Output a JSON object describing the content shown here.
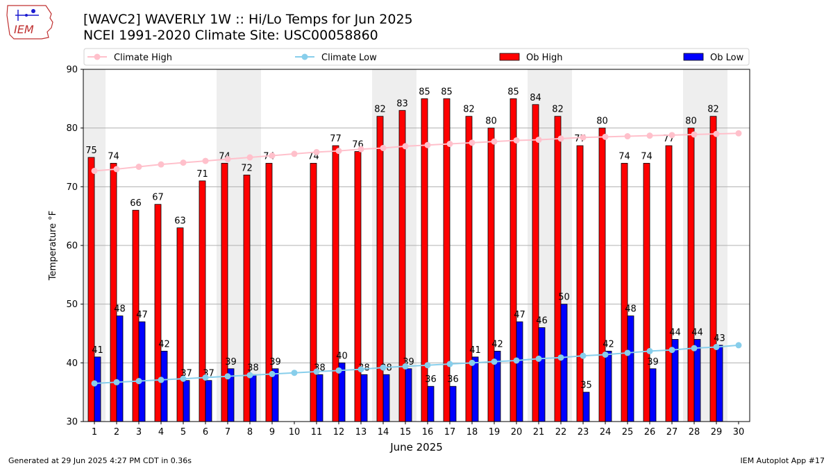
{
  "header": {
    "logo_text": "IEM",
    "title_line1": "[WAVC2] WAVERLY 1W :: Hi/Lo Temps for Jun 2025",
    "title_line2": "NCEI 1991-2020 Climate Site: USC00058860"
  },
  "footer": {
    "generated": "Generated at 29 Jun 2025 4:27 PM CDT in 0.36s",
    "app": "IEM Autoplot App #17"
  },
  "colors": {
    "climate_high": "#ffc0cb",
    "climate_low": "#87ceeb",
    "ob_high": "#ff0000",
    "ob_low": "#0000ff",
    "weekend_shade": "#eeeeee",
    "grid": "#b0b0b0"
  },
  "chart_data": {
    "type": "bar",
    "xlabel": "June 2025",
    "ylabel": "Temperature °F",
    "ylim": [
      30,
      90
    ],
    "yticks": [
      30,
      40,
      50,
      60,
      70,
      80,
      90
    ],
    "grid": "horizontal",
    "legend_placement": "top",
    "categories": [
      "1",
      "2",
      "3",
      "4",
      "5",
      "6",
      "7",
      "8",
      "9",
      "10",
      "11",
      "12",
      "13",
      "14",
      "15",
      "16",
      "17",
      "18",
      "19",
      "20",
      "21",
      "22",
      "23",
      "24",
      "25",
      "26",
      "27",
      "28",
      "29",
      "30"
    ],
    "shaded_days": [
      1,
      7,
      8,
      14,
      15,
      21,
      22,
      28,
      29
    ],
    "series": [
      {
        "name": "Ob High",
        "kind": "bar",
        "values": [
          75,
          74,
          66,
          67,
          63,
          71,
          74,
          72,
          74,
          null,
          74,
          77,
          76,
          82,
          83,
          85,
          85,
          82,
          80,
          85,
          84,
          82,
          77,
          80,
          74,
          74,
          77,
          80,
          82,
          null
        ]
      },
      {
        "name": "Ob Low",
        "kind": "bar",
        "values": [
          41,
          48,
          47,
          42,
          37,
          37,
          39,
          38,
          39,
          null,
          38,
          40,
          38,
          38,
          39,
          36,
          36,
          41,
          42,
          47,
          46,
          50,
          35,
          42,
          48,
          39,
          44,
          44,
          43,
          null
        ]
      },
      {
        "name": "Climate High",
        "kind": "line",
        "values": [
          72.7,
          73.0,
          73.4,
          73.8,
          74.1,
          74.4,
          74.7,
          75.0,
          75.3,
          75.6,
          75.9,
          76.1,
          76.4,
          76.6,
          76.9,
          77.1,
          77.3,
          77.5,
          77.7,
          77.9,
          78.0,
          78.2,
          78.4,
          78.5,
          78.6,
          78.7,
          78.8,
          78.9,
          79.0,
          79.1
        ]
      },
      {
        "name": "Climate Low",
        "kind": "line",
        "values": [
          36.5,
          36.7,
          36.9,
          37.1,
          37.3,
          37.5,
          37.7,
          37.9,
          38.1,
          38.3,
          38.5,
          38.7,
          38.9,
          39.2,
          39.4,
          39.6,
          39.8,
          40.0,
          40.2,
          40.4,
          40.7,
          40.9,
          41.2,
          41.4,
          41.7,
          42.0,
          42.2,
          42.5,
          42.7,
          43.0
        ]
      }
    ]
  }
}
